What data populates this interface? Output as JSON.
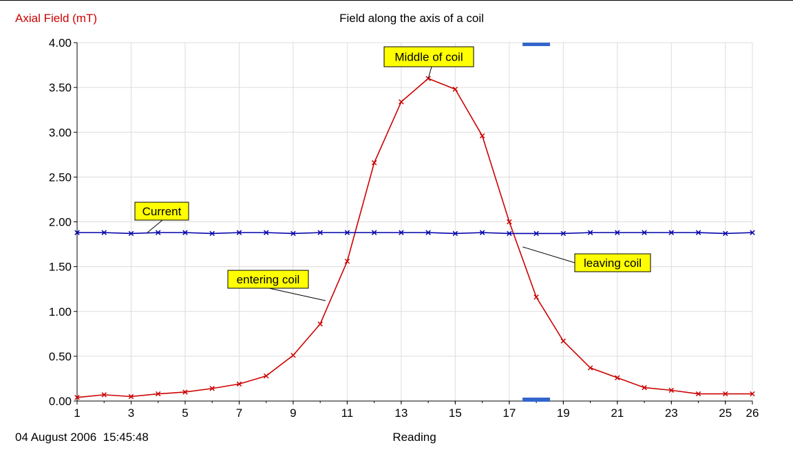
{
  "chart_data": {
    "type": "line",
    "title": "Field along the axis of a coil",
    "ylabel": "Axial Field (mT)",
    "xlabel": "Reading",
    "timestamp": "04 August 2006  15:45:48",
    "xlim": [
      1,
      26
    ],
    "ylim": [
      0,
      4
    ],
    "x_ticks": [
      "1",
      "3",
      "5",
      "7",
      "9",
      "11",
      "13",
      "15",
      "17",
      "19",
      "21",
      "23",
      "25",
      "26"
    ],
    "y_ticks": [
      "0.00",
      "0.50",
      "1.00",
      "1.50",
      "2.00",
      "2.50",
      "3.00",
      "3.50",
      "4.00"
    ],
    "grid": true,
    "x": [
      1,
      2,
      3,
      4,
      5,
      6,
      7,
      8,
      9,
      10,
      11,
      12,
      13,
      14,
      15,
      16,
      17,
      18,
      19,
      20,
      21,
      22,
      23,
      24,
      25,
      26
    ],
    "series": [
      {
        "name": "Axial Field (mT)",
        "color": "#cc0000",
        "values": [
          0.04,
          0.07,
          0.05,
          0.08,
          0.1,
          0.14,
          0.19,
          0.28,
          0.51,
          0.86,
          1.56,
          2.66,
          3.34,
          3.6,
          3.48,
          2.96,
          2.0,
          1.16,
          0.67,
          0.37,
          0.26,
          0.15,
          0.12,
          0.08,
          0.08,
          0.08
        ]
      },
      {
        "color": "#0000aa",
        "values": [
          1.88,
          1.88,
          1.87,
          1.88,
          1.88,
          1.87,
          1.88,
          1.88,
          1.87,
          1.88,
          1.88,
          1.88,
          1.88,
          1.88,
          1.87,
          1.88,
          1.87,
          1.87,
          1.87,
          1.88,
          1.88,
          1.88,
          1.88,
          1.88,
          1.87,
          1.88
        ]
      }
    ],
    "annotations": [
      {
        "text": "Middle of coil",
        "target_x": 14,
        "target_y": 3.6
      },
      {
        "text": "Current",
        "target_x": 3.6,
        "target_y": 1.88
      },
      {
        "text": "entering coil",
        "target_x": 10.2,
        "target_y": 1.12
      },
      {
        "text": "leaving coil",
        "target_x": 17.5,
        "target_y": 1.72
      }
    ],
    "cursor_x": 18,
    "colors": {
      "annotation_fill": "#ffff00",
      "cursor": "#3366cc",
      "ylabel": "#cc0000"
    }
  }
}
